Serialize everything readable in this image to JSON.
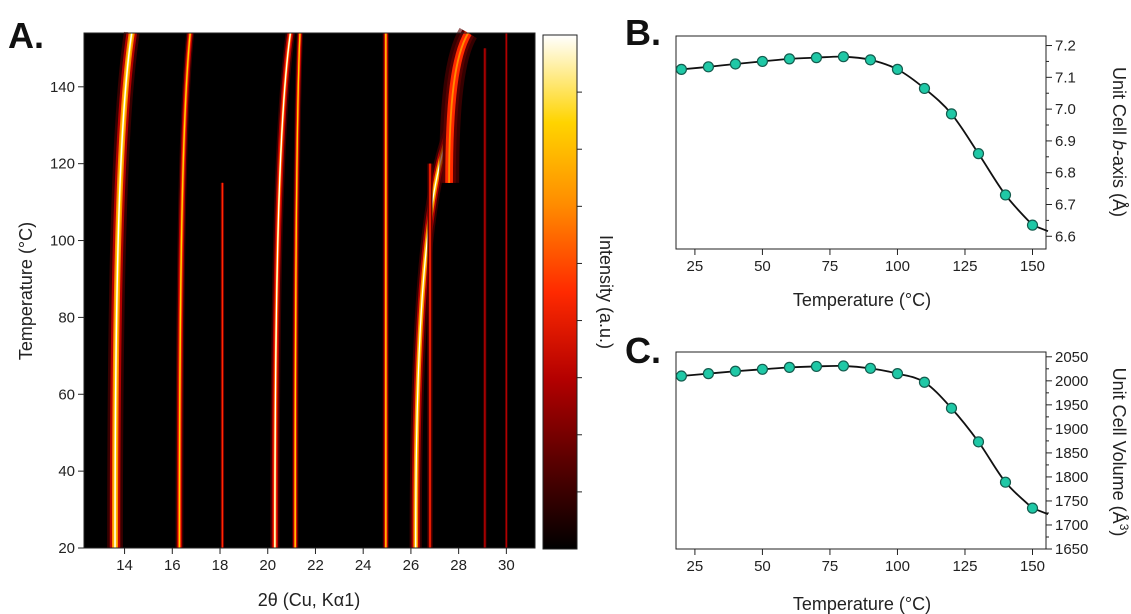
{
  "chart_data": [
    {
      "panel": "A.",
      "type": "heatmap",
      "xlabel": "2θ (Cu, Kα1)",
      "ylabel": "Temperature (°C)",
      "colorbar_label": "Intensity (a.u.)",
      "xlim": [
        12.3,
        31.2
      ],
      "ylim": [
        20,
        154
      ],
      "x_ticks": [
        14,
        16,
        18,
        20,
        22,
        24,
        26,
        28,
        30
      ],
      "y_ticks": [
        20,
        40,
        60,
        80,
        100,
        120,
        140
      ],
      "colormap": [
        "#000000",
        "#5a0000",
        "#b30000",
        "#ff2a00",
        "#ff8c00",
        "#ffd400",
        "#ffffff"
      ],
      "peaks": [
        {
          "x_low": 13.6,
          "x_high": 14.3,
          "start": 20,
          "end": 154,
          "intensity": 1.0,
          "width": 0.22
        },
        {
          "x_low": 16.3,
          "x_high": 16.75,
          "start": 20,
          "end": 154,
          "intensity": 0.85,
          "width": 0.11
        },
        {
          "x_low": 18.1,
          "x_high": 18.1,
          "start": 20,
          "end": 115,
          "intensity": 0.45,
          "width": 0.07
        },
        {
          "x_low": 20.3,
          "x_high": 20.95,
          "start": 20,
          "end": 154,
          "intensity": 0.95,
          "width": 0.13
        },
        {
          "x_low": 21.15,
          "x_high": 21.35,
          "start": 20,
          "end": 154,
          "intensity": 0.8,
          "width": 0.09
        },
        {
          "x_low": 24.95,
          "x_high": 24.95,
          "start": 20,
          "end": 154,
          "intensity": 0.8,
          "width": 0.09
        },
        {
          "x_low": 26.2,
          "x_high": 27.6,
          "start": 20,
          "end": 128,
          "intensity": 1.0,
          "width": 0.17
        },
        {
          "x_low": 26.8,
          "x_high": 26.8,
          "start": 20,
          "end": 120,
          "intensity": 0.55,
          "width": 0.08
        },
        {
          "x_low": 27.6,
          "x_high": 28.4,
          "start": 115,
          "end": 154,
          "intensity": 0.7,
          "width": 0.28
        },
        {
          "x_low": 29.1,
          "x_high": 29.1,
          "start": 20,
          "end": 150,
          "intensity": 0.4,
          "width": 0.06
        },
        {
          "x_low": 30.0,
          "x_high": 30.0,
          "start": 20,
          "end": 154,
          "intensity": 0.25,
          "width": 0.05
        }
      ]
    },
    {
      "panel": "B.",
      "type": "line",
      "xlabel": "Temperature (°C)",
      "ylabel_parts": [
        "Unit Cell ",
        "b",
        "-axis (Å)"
      ],
      "xlim": [
        18,
        155
      ],
      "ylim": [
        6.56,
        7.23
      ],
      "x_ticks": [
        25,
        50,
        75,
        100,
        125,
        150
      ],
      "y_ticks": [
        6.6,
        6.7,
        6.8,
        6.9,
        7.0,
        7.1,
        7.2
      ],
      "x": [
        20,
        30,
        40,
        50,
        60,
        70,
        80,
        90,
        100,
        110,
        120,
        130,
        140,
        150
      ],
      "y": [
        7.125,
        7.133,
        7.142,
        7.15,
        7.158,
        7.162,
        7.165,
        7.155,
        7.125,
        7.065,
        6.985,
        6.86,
        6.73,
        6.635
      ],
      "marker_color": "#1fc8a6"
    },
    {
      "panel": "C.",
      "type": "line",
      "xlabel": "Temperature (°C)",
      "ylabel_parts": [
        "Unit Cell Volume (Å",
        "3",
        ")"
      ],
      "xlim": [
        18,
        155
      ],
      "ylim": [
        1650,
        2060
      ],
      "x_ticks": [
        25,
        50,
        75,
        100,
        125,
        150
      ],
      "y_ticks": [
        1650,
        1700,
        1750,
        1800,
        1850,
        1900,
        1950,
        2000,
        2050
      ],
      "x": [
        20,
        30,
        40,
        50,
        60,
        70,
        80,
        90,
        100,
        110,
        120,
        130,
        140,
        150
      ],
      "y": [
        2010,
        2015,
        2020,
        2024,
        2028,
        2030,
        2031,
        2026,
        2015,
        1997,
        1943,
        1873,
        1789,
        1735
      ],
      "marker_color": "#1fc8a6"
    }
  ]
}
